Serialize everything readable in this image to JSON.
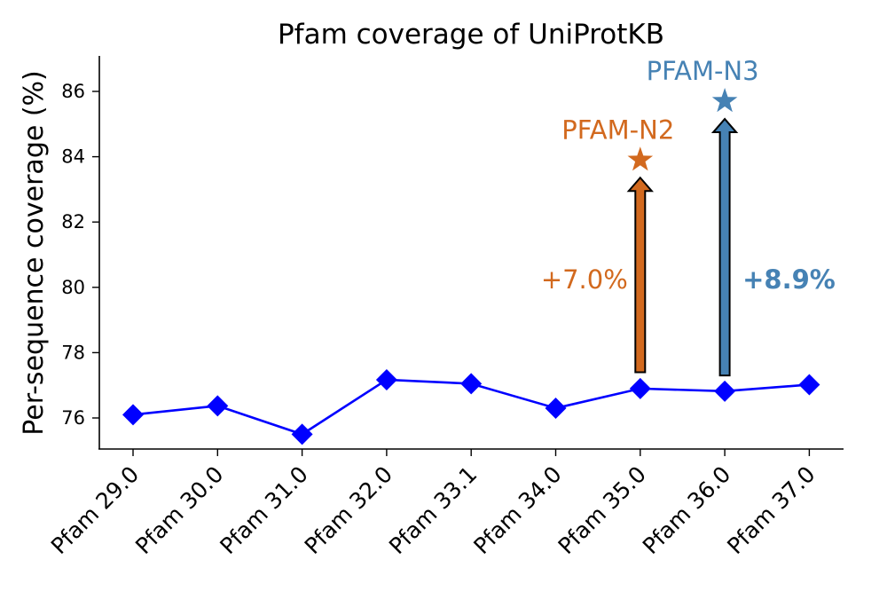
{
  "chart_data": {
    "type": "line",
    "title": "Pfam coverage of UniProtKB",
    "xlabel": "",
    "ylabel": "Per-sequence coverage (%)",
    "ylim": [
      75,
      87
    ],
    "yticks": [
      76,
      78,
      80,
      82,
      84,
      86
    ],
    "grid": false,
    "categories": [
      "Pfam 29.0",
      "Pfam 30.0",
      "Pfam 31.0",
      "Pfam 32.0",
      "Pfam 33.1",
      "Pfam 34.0",
      "Pfam 35.0",
      "Pfam 36.0",
      "Pfam 37.0"
    ],
    "series": [
      {
        "values": [
          76.1,
          76.37,
          75.5,
          77.17,
          77.05,
          76.3,
          76.9,
          76.82,
          77.02
        ],
        "color": "#0000ff",
        "marker": "diamond"
      }
    ],
    "annotations": [
      {
        "name": "PFAM-N2",
        "category": "Pfam 35.0",
        "from": 77.4,
        "value": 83.9,
        "increase": "+7.0%",
        "color": "#d2691e",
        "label_color": "#d2691e",
        "marker": "star",
        "increase_bold": false
      },
      {
        "name": "PFAM-N3",
        "category": "Pfam 36.0",
        "from": 77.3,
        "value": 85.7,
        "increase": "+8.9%",
        "color": "#4682b4",
        "label_color": "#4682b4",
        "marker": "star",
        "increase_bold": true
      }
    ]
  }
}
